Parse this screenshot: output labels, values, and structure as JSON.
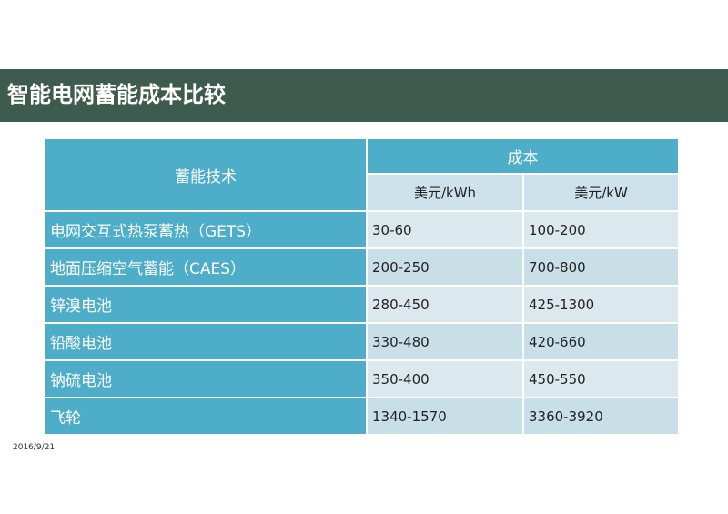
{
  "slide": {
    "title": "智能电网蓄能成本比较",
    "date": "2016/9/21"
  },
  "table": {
    "tech_header": "蓄能技术",
    "cost_header": "成本",
    "units": [
      "美元/kWh",
      "美元/kW"
    ],
    "rows": [
      {
        "tech": "电网交互式热泵蓄热（GETS）",
        "kwh": "30-60",
        "kw": "100-200"
      },
      {
        "tech": "地面压缩空气蓄能（CAES）",
        "kwh": "200-250",
        "kw": "700-800"
      },
      {
        "tech": "锌溴电池",
        "kwh": "280-450",
        "kw": "425-1300"
      },
      {
        "tech": "铅酸电池",
        "kwh": "330-480",
        "kw": "420-660"
      },
      {
        "tech": "钠硫电池",
        "kwh": "350-400",
        "kw": "450-550"
      },
      {
        "tech": "飞轮",
        "kwh": "1340-1570",
        "kw": "3360-3920"
      }
    ]
  },
  "colors": {
    "title_band": "#3e5b4f",
    "header_blue": "#4eaec9",
    "cell_light": "#dbe9ef",
    "cell_dark": "#c9dfe8"
  }
}
